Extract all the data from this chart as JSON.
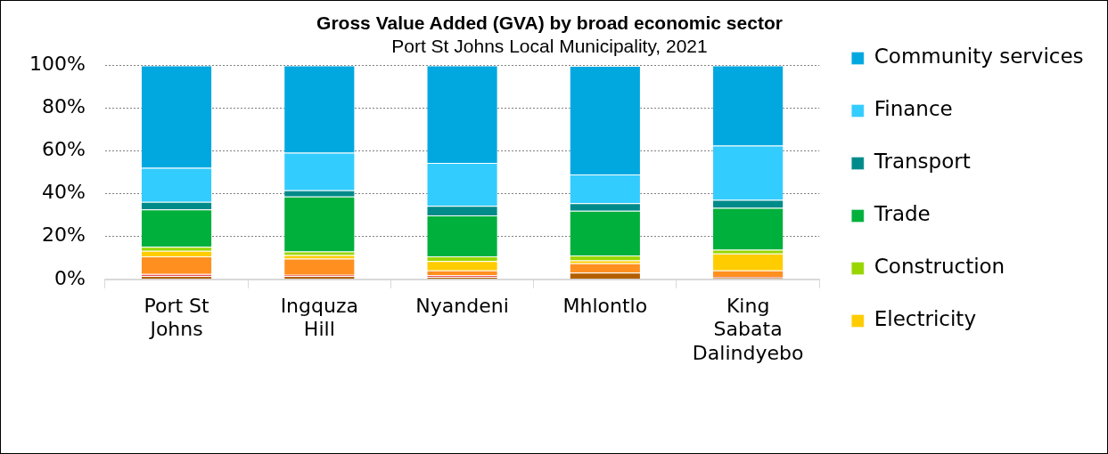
{
  "chart_data": {
    "type": "bar",
    "title": "Gross Value Added (GVA) by broad economic sector",
    "subtitle": "Port St Johns Local Municipality, 2021",
    "categories": [
      "Port St Johns",
      "Ingquza Hill",
      "Nyandeni",
      "Mhlontlo",
      "King Sabata Dalindyebo"
    ],
    "stacked": true,
    "ylim": [
      0,
      100
    ],
    "yticks": [
      {
        "value": 0,
        "label": "0%"
      },
      {
        "value": 20,
        "label": "20%"
      },
      {
        "value": 40,
        "label": "40%"
      },
      {
        "value": 60,
        "label": "60%"
      },
      {
        "value": 80,
        "label": "80%"
      },
      {
        "value": 100,
        "label": "100%"
      }
    ],
    "grid": "y",
    "legend": "right",
    "series": [
      {
        "color": "#b35f00",
        "values": [
          1.6,
          1.6,
          1.2,
          3.1,
          0.8
        ]
      },
      {
        "color": "#e8505a",
        "values": [
          0.9,
          0.5,
          0.7,
          null,
          0.3
        ]
      },
      {
        "color": "#ff9020",
        "values": [
          8.2,
          7.6,
          2.3,
          4.4,
          3.1
        ]
      },
      {
        "name": "Electricity",
        "color": "#ffcc00",
        "values": [
          2.6,
          1.7,
          4.4,
          1.4,
          7.9
        ]
      },
      {
        "name": "Construction",
        "color": "#99d600",
        "values": [
          1.9,
          1.6,
          2.1,
          2.3,
          1.8
        ]
      },
      {
        "name": "Trade",
        "color": "#00b03c",
        "values": [
          17.5,
          25.7,
          19.2,
          20.8,
          19.5
        ]
      },
      {
        "name": "Transport",
        "color": "#008b8b",
        "values": [
          3.5,
          2.9,
          4.4,
          3.6,
          3.7
        ]
      },
      {
        "name": "Finance",
        "color": "#33ccff",
        "values": [
          15.9,
          17.6,
          20.1,
          13.4,
          25.4
        ]
      },
      {
        "name": "Community services",
        "color": "#00a8e0",
        "values": [
          47.9,
          40.8,
          45.6,
          50.8,
          37.5
        ]
      }
    ]
  }
}
